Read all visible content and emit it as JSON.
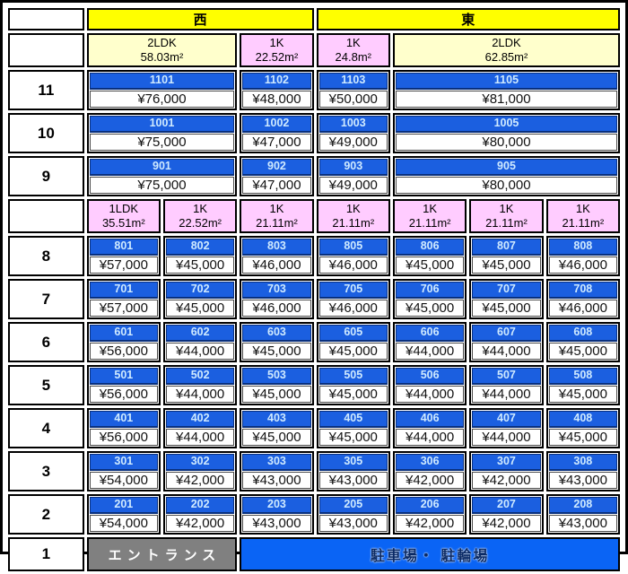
{
  "legend": {
    "west": {
      "label": "西",
      "span": 3
    },
    "east": {
      "label": "東",
      "span": 4
    }
  },
  "upper_section": {
    "types": [
      {
        "label": "2LDK",
        "area": "58.03m²",
        "span": 2,
        "fill": "cream"
      },
      {
        "label": "1K",
        "area": "22.52m²",
        "span": 1,
        "fill": "pink"
      },
      {
        "label": "1K",
        "area": "24.8m²",
        "span": 1,
        "fill": "pink"
      },
      {
        "label": "2LDK",
        "area": "62.85m²",
        "span": 3,
        "fill": "cream"
      }
    ],
    "floors": [
      {
        "floor": "11",
        "units": [
          {
            "no": "1101",
            "price": "¥76,000",
            "span": 2
          },
          {
            "no": "1102",
            "price": "¥48,000",
            "span": 1
          },
          {
            "no": "1103",
            "price": "¥50,000",
            "span": 1
          },
          {
            "no": "1105",
            "price": "¥81,000",
            "span": 3
          }
        ]
      },
      {
        "floor": "10",
        "units": [
          {
            "no": "1001",
            "price": "¥75,000",
            "span": 2
          },
          {
            "no": "1002",
            "price": "¥47,000",
            "span": 1
          },
          {
            "no": "1003",
            "price": "¥49,000",
            "span": 1
          },
          {
            "no": "1005",
            "price": "¥80,000",
            "span": 3
          }
        ]
      },
      {
        "floor": "9",
        "units": [
          {
            "no": "901",
            "price": "¥75,000",
            "span": 2
          },
          {
            "no": "902",
            "price": "¥47,000",
            "span": 1
          },
          {
            "no": "903",
            "price": "¥49,000",
            "span": 1
          },
          {
            "no": "905",
            "price": "¥80,000",
            "span": 3
          }
        ]
      }
    ]
  },
  "lower_section": {
    "types": [
      {
        "label": "1LDK",
        "area": "35.51m²",
        "span": 1,
        "fill": "pink"
      },
      {
        "label": "1K",
        "area": "22.52m²",
        "span": 1,
        "fill": "pink"
      },
      {
        "label": "1K",
        "area": "21.11m²",
        "span": 1,
        "fill": "pink"
      },
      {
        "label": "1K",
        "area": "21.11m²",
        "span": 1,
        "fill": "pink"
      },
      {
        "label": "1K",
        "area": "21.11m²",
        "span": 1,
        "fill": "pink"
      },
      {
        "label": "1K",
        "area": "21.11m²",
        "span": 1,
        "fill": "pink"
      },
      {
        "label": "1K",
        "area": "21.11m²",
        "span": 1,
        "fill": "pink"
      }
    ],
    "floors": [
      {
        "floor": "8",
        "units": [
          {
            "no": "801",
            "price": "¥57,000"
          },
          {
            "no": "802",
            "price": "¥45,000"
          },
          {
            "no": "803",
            "price": "¥46,000"
          },
          {
            "no": "805",
            "price": "¥46,000"
          },
          {
            "no": "806",
            "price": "¥45,000"
          },
          {
            "no": "807",
            "price": "¥45,000"
          },
          {
            "no": "808",
            "price": "¥46,000"
          }
        ]
      },
      {
        "floor": "7",
        "units": [
          {
            "no": "701",
            "price": "¥57,000"
          },
          {
            "no": "702",
            "price": "¥45,000"
          },
          {
            "no": "703",
            "price": "¥46,000"
          },
          {
            "no": "705",
            "price": "¥46,000"
          },
          {
            "no": "706",
            "price": "¥45,000"
          },
          {
            "no": "707",
            "price": "¥45,000"
          },
          {
            "no": "708",
            "price": "¥46,000"
          }
        ]
      },
      {
        "floor": "6",
        "units": [
          {
            "no": "601",
            "price": "¥56,000"
          },
          {
            "no": "602",
            "price": "¥44,000"
          },
          {
            "no": "603",
            "price": "¥45,000"
          },
          {
            "no": "605",
            "price": "¥45,000"
          },
          {
            "no": "606",
            "price": "¥44,000"
          },
          {
            "no": "607",
            "price": "¥44,000"
          },
          {
            "no": "608",
            "price": "¥45,000"
          }
        ]
      },
      {
        "floor": "5",
        "units": [
          {
            "no": "501",
            "price": "¥56,000"
          },
          {
            "no": "502",
            "price": "¥44,000"
          },
          {
            "no": "503",
            "price": "¥45,000"
          },
          {
            "no": "505",
            "price": "¥45,000"
          },
          {
            "no": "506",
            "price": "¥44,000"
          },
          {
            "no": "507",
            "price": "¥44,000"
          },
          {
            "no": "508",
            "price": "¥45,000"
          }
        ]
      },
      {
        "floor": "4",
        "units": [
          {
            "no": "401",
            "price": "¥56,000"
          },
          {
            "no": "402",
            "price": "¥44,000"
          },
          {
            "no": "403",
            "price": "¥45,000"
          },
          {
            "no": "405",
            "price": "¥45,000"
          },
          {
            "no": "406",
            "price": "¥44,000"
          },
          {
            "no": "407",
            "price": "¥44,000"
          },
          {
            "no": "408",
            "price": "¥45,000"
          }
        ]
      },
      {
        "floor": "3",
        "units": [
          {
            "no": "301",
            "price": "¥54,000"
          },
          {
            "no": "302",
            "price": "¥42,000"
          },
          {
            "no": "303",
            "price": "¥43,000"
          },
          {
            "no": "305",
            "price": "¥43,000"
          },
          {
            "no": "306",
            "price": "¥42,000"
          },
          {
            "no": "307",
            "price": "¥42,000"
          },
          {
            "no": "308",
            "price": "¥43,000"
          }
        ]
      },
      {
        "floor": "2",
        "units": [
          {
            "no": "201",
            "price": "¥54,000"
          },
          {
            "no": "202",
            "price": "¥42,000"
          },
          {
            "no": "203",
            "price": "¥43,000"
          },
          {
            "no": "205",
            "price": "¥43,000"
          },
          {
            "no": "206",
            "price": "¥42,000"
          },
          {
            "no": "207",
            "price": "¥42,000"
          },
          {
            "no": "208",
            "price": "¥43,000"
          }
        ]
      }
    ]
  },
  "ground_floor": {
    "floor": "1",
    "entrance": "エントランス",
    "parking": "駐車場・ 駐輪場",
    "entrance_span": 2,
    "parking_span": 5
  },
  "colors": {
    "header_yellow": "#FFFF00",
    "type_cream": "#FFFFCC",
    "type_pink": "#FFCCFF",
    "room_number_blue": "#1B5FE0",
    "room_number_text": "#CFEAFF",
    "room_number_border": "#09307E",
    "entrance_gray": "#808080",
    "parking_blue": "#0A64F5",
    "parking_text": "#0A2A66",
    "grid_border": "#000000"
  }
}
